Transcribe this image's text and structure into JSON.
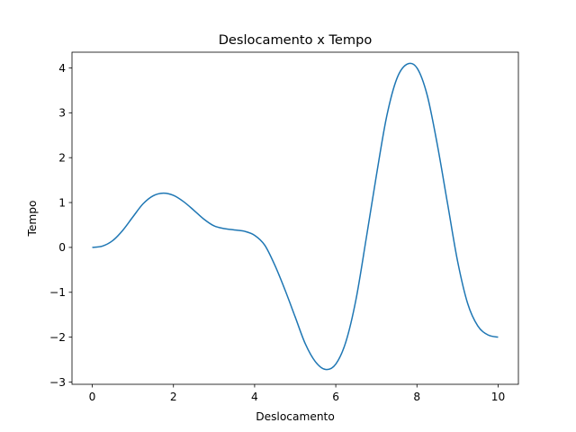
{
  "chart_data": {
    "type": "line",
    "title": "Deslocamento x Tempo",
    "xlabel": "Deslocamento",
    "ylabel": "Tempo",
    "xlim": [
      -0.5,
      10.5
    ],
    "ylim": [
      -3.05,
      4.35
    ],
    "xticks": [
      0,
      2,
      4,
      6,
      8,
      10
    ],
    "xtick_labels": [
      "0",
      "2",
      "4",
      "6",
      "8",
      "10"
    ],
    "yticks": [
      -3,
      -2,
      -1,
      0,
      1,
      2,
      3,
      4
    ],
    "ytick_labels": [
      "−3",
      "−2",
      "−1",
      "0",
      "1",
      "2",
      "3",
      "4"
    ],
    "grid": false,
    "series": [
      {
        "color": "#1f77b4",
        "x": [
          0,
          0.25,
          0.5,
          0.75,
          1.0,
          1.25,
          1.5,
          1.75,
          2.0,
          2.25,
          2.5,
          2.75,
          3.0,
          3.25,
          3.5,
          3.75,
          4.0,
          4.25,
          4.5,
          4.75,
          5.0,
          5.25,
          5.5,
          5.75,
          6.0,
          6.25,
          6.5,
          6.75,
          7.0,
          7.25,
          7.5,
          7.75,
          8.0,
          8.25,
          8.5,
          8.75,
          9.0,
          9.25,
          9.5,
          9.75,
          10.0
        ],
        "y": [
          0.0,
          0.03,
          0.15,
          0.38,
          0.68,
          0.97,
          1.15,
          1.21,
          1.16,
          1.02,
          0.83,
          0.63,
          0.48,
          0.42,
          0.39,
          0.36,
          0.27,
          0.05,
          -0.4,
          -0.95,
          -1.55,
          -2.15,
          -2.55,
          -2.72,
          -2.6,
          -2.1,
          -1.15,
          0.2,
          1.6,
          2.9,
          3.75,
          4.08,
          4.0,
          3.4,
          2.3,
          1.0,
          -0.3,
          -1.25,
          -1.75,
          -1.95,
          -2.0
        ]
      }
    ]
  }
}
